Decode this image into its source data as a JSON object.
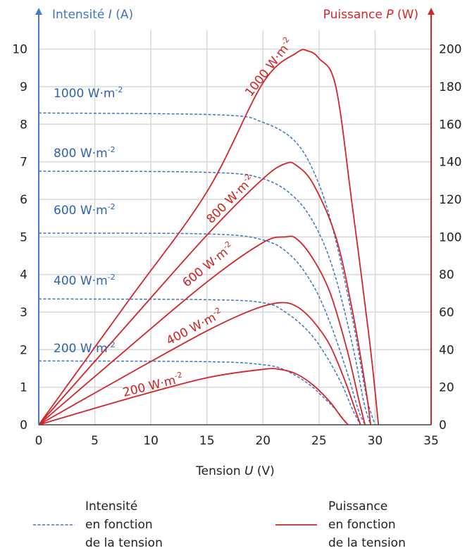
{
  "chart_data": {
    "type": "line",
    "title": "",
    "xlabel": {
      "prefix": "Tension ",
      "symbol": "U",
      "unit": " (V)"
    },
    "ylabel_left": {
      "prefix": "Intensité ",
      "symbol": "I",
      "unit": " (A)"
    },
    "ylabel_right": {
      "prefix": "Puissance ",
      "symbol": "P",
      "unit": " (W)"
    },
    "xlim": [
      0,
      35
    ],
    "ylim_left": [
      0,
      10.5
    ],
    "ylim_right": [
      0,
      210
    ],
    "x_ticks": [
      "0",
      "5",
      "10",
      "15",
      "20",
      "25",
      "30",
      "35"
    ],
    "y_left_ticks": [
      "0",
      "1",
      "2",
      "3",
      "4",
      "5",
      "6",
      "7",
      "8",
      "9",
      "10"
    ],
    "y_right_ticks": [
      "0",
      "20",
      "40",
      "60",
      "80",
      "100",
      "120",
      "140",
      "160",
      "180",
      "200"
    ],
    "grid": true,
    "colors": {
      "intensity": "#3f73c4",
      "power": "#d2252a",
      "left_axis": "#4a7bc8",
      "right_axis": "#d2252a"
    },
    "intensity_series": [
      {
        "label": "1000 W·m",
        "points": [
          [
            0,
            8.3
          ],
          [
            16,
            8.25
          ],
          [
            20,
            8.05
          ],
          [
            23,
            7.5
          ],
          [
            25,
            6.4
          ],
          [
            26.5,
            4.9
          ],
          [
            28,
            2.8
          ],
          [
            29.2,
            0.8
          ],
          [
            30,
            0
          ]
        ]
      },
      {
        "label": "800 W·m",
        "points": [
          [
            0,
            6.75
          ],
          [
            15,
            6.72
          ],
          [
            20,
            6.55
          ],
          [
            23,
            6.0
          ],
          [
            25,
            5.1
          ],
          [
            26.5,
            3.9
          ],
          [
            28,
            2.1
          ],
          [
            29,
            0.6
          ],
          [
            29.6,
            0
          ]
        ]
      },
      {
        "label": "600 W·m",
        "points": [
          [
            0,
            5.1
          ],
          [
            15,
            5.08
          ],
          [
            20,
            4.92
          ],
          [
            22.5,
            4.5
          ],
          [
            24.5,
            3.7
          ],
          [
            26,
            2.7
          ],
          [
            27.5,
            1.4
          ],
          [
            28.5,
            0.4
          ],
          [
            29.1,
            0
          ]
        ]
      },
      {
        "label": "400 W·m",
        "points": [
          [
            0,
            3.35
          ],
          [
            15,
            3.33
          ],
          [
            20,
            3.25
          ],
          [
            22,
            3.0
          ],
          [
            24,
            2.5
          ],
          [
            25.5,
            1.9
          ],
          [
            27,
            1.1
          ],
          [
            28,
            0.4
          ],
          [
            28.7,
            0
          ]
        ]
      },
      {
        "label": "200 W·m",
        "points": [
          [
            0,
            1.7
          ],
          [
            15,
            1.68
          ],
          [
            20,
            1.6
          ],
          [
            22,
            1.45
          ],
          [
            24,
            1.1
          ],
          [
            25.5,
            0.7
          ],
          [
            26.5,
            0.4
          ],
          [
            27.3,
            0.1
          ],
          [
            27.6,
            0
          ]
        ]
      }
    ],
    "power_series": [
      {
        "label": "1000 W·m",
        "points": [
          [
            0,
            0
          ],
          [
            8,
            66
          ],
          [
            15,
            124
          ],
          [
            20,
            182
          ],
          [
            23,
            198
          ],
          [
            24,
            199
          ],
          [
            25,
            195
          ],
          [
            26.5,
            180
          ],
          [
            28,
            115
          ],
          [
            29.5,
            45
          ],
          [
            30.3,
            0
          ]
        ]
      },
      {
        "label": "800 W·m",
        "points": [
          [
            0,
            0
          ],
          [
            8,
            54
          ],
          [
            15,
            101
          ],
          [
            20,
            131
          ],
          [
            22,
            139
          ],
          [
            23,
            138
          ],
          [
            24.5,
            128
          ],
          [
            26.5,
            100
          ],
          [
            28,
            60
          ],
          [
            29.2,
            18
          ],
          [
            29.6,
            0
          ]
        ]
      },
      {
        "label": "600 W·m",
        "points": [
          [
            0,
            0
          ],
          [
            8,
            41
          ],
          [
            15,
            76
          ],
          [
            20,
            97
          ],
          [
            22,
            100
          ],
          [
            23,
            99
          ],
          [
            24.5,
            88
          ],
          [
            26,
            70
          ],
          [
            27.5,
            40
          ],
          [
            28.6,
            12
          ],
          [
            29.1,
            0
          ]
        ]
      },
      {
        "label": "400 W·m",
        "points": [
          [
            0,
            0
          ],
          [
            8,
            27
          ],
          [
            15,
            50
          ],
          [
            19,
            61
          ],
          [
            21.5,
            65
          ],
          [
            23,
            63
          ],
          [
            24.5,
            55
          ],
          [
            26,
            42
          ],
          [
            27.4,
            22
          ],
          [
            28.4,
            5
          ],
          [
            28.7,
            0
          ]
        ]
      },
      {
        "label": "200 W·m",
        "points": [
          [
            0,
            0
          ],
          [
            8,
            14
          ],
          [
            15,
            25
          ],
          [
            20,
            29.5
          ],
          [
            21.5,
            29.5
          ],
          [
            23,
            27
          ],
          [
            24.5,
            21
          ],
          [
            26,
            12
          ],
          [
            27,
            4
          ],
          [
            27.6,
            0
          ]
        ]
      }
    ],
    "label_exponent": "-2",
    "legend": {
      "position": "bottom",
      "intensity": [
        "Intensité",
        "en fonction",
        "de la tension"
      ],
      "power": [
        "Puissance",
        "en fonction",
        "de la tension"
      ]
    }
  }
}
